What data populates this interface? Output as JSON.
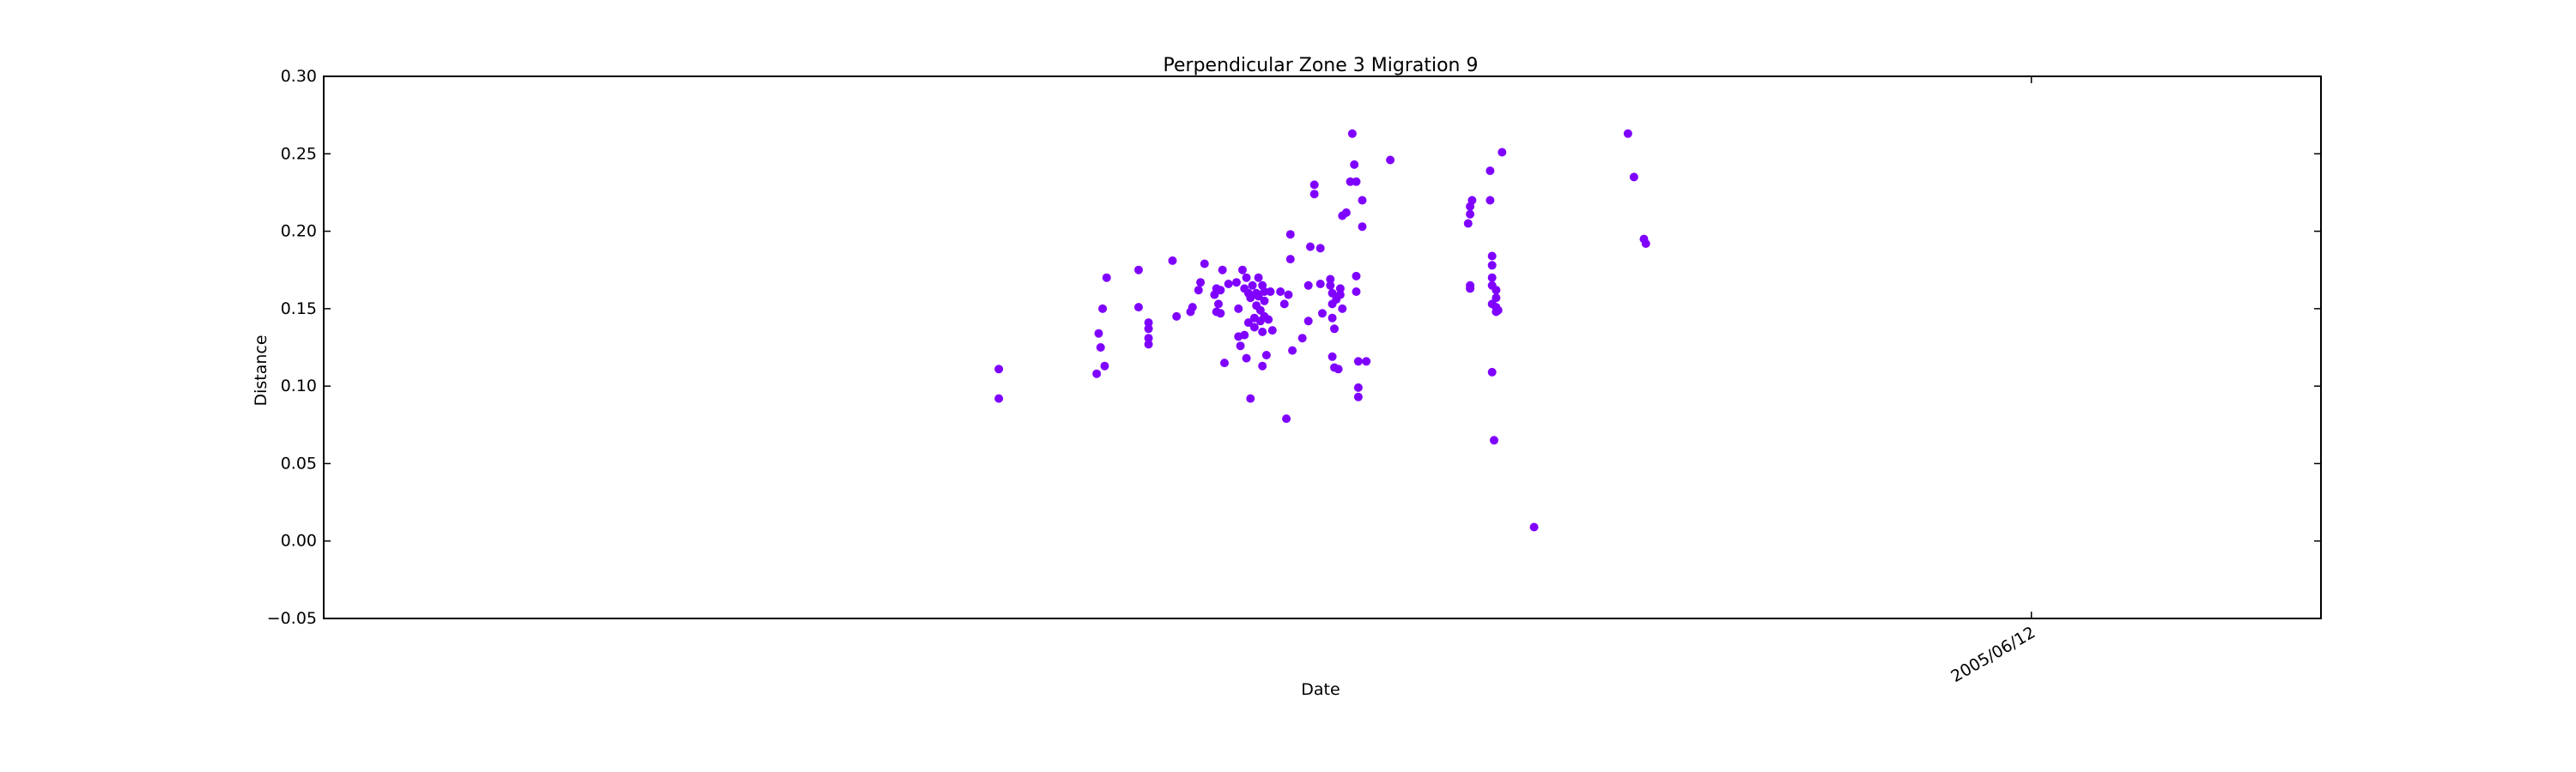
{
  "chart_data": {
    "type": "scatter",
    "title": "Perpendicular Zone 3 Migration 9",
    "xlabel": "Date",
    "ylabel": "Distance",
    "ylim": [
      -0.05,
      0.3
    ],
    "yticks": [
      "0.30",
      "0.25",
      "0.20",
      "0.15",
      "0.10",
      "0.05",
      "0.00",
      "−0.05"
    ],
    "xticks": [
      {
        "label": "2005/06/12",
        "value": 0.855
      }
    ],
    "xlim": [
      0,
      1
    ],
    "grid": false,
    "series": [
      {
        "color": "#7f00ff",
        "points": [
          [
            0.338,
            0.111
          ],
          [
            0.338,
            0.092
          ],
          [
            0.387,
            0.108
          ],
          [
            0.388,
            0.134
          ],
          [
            0.389,
            0.125
          ],
          [
            0.39,
            0.15
          ],
          [
            0.391,
            0.113
          ],
          [
            0.392,
            0.17
          ],
          [
            0.408,
            0.175
          ],
          [
            0.408,
            0.151
          ],
          [
            0.413,
            0.141
          ],
          [
            0.413,
            0.137
          ],
          [
            0.413,
            0.131
          ],
          [
            0.413,
            0.127
          ],
          [
            0.425,
            0.181
          ],
          [
            0.427,
            0.145
          ],
          [
            0.434,
            0.148
          ],
          [
            0.435,
            0.151
          ],
          [
            0.438,
            0.162
          ],
          [
            0.439,
            0.167
          ],
          [
            0.441,
            0.179
          ],
          [
            0.446,
            0.159
          ],
          [
            0.447,
            0.163
          ],
          [
            0.447,
            0.148
          ],
          [
            0.448,
            0.153
          ],
          [
            0.449,
            0.162
          ],
          [
            0.449,
            0.147
          ],
          [
            0.45,
            0.175
          ],
          [
            0.451,
            0.115
          ],
          [
            0.453,
            0.166
          ],
          [
            0.457,
            0.167
          ],
          [
            0.458,
            0.15
          ],
          [
            0.458,
            0.132
          ],
          [
            0.459,
            0.126
          ],
          [
            0.46,
            0.175
          ],
          [
            0.461,
            0.163
          ],
          [
            0.461,
            0.133
          ],
          [
            0.462,
            0.118
          ],
          [
            0.462,
            0.17
          ],
          [
            0.463,
            0.16
          ],
          [
            0.463,
            0.141
          ],
          [
            0.464,
            0.157
          ],
          [
            0.464,
            0.092
          ],
          [
            0.465,
            0.165
          ],
          [
            0.466,
            0.144
          ],
          [
            0.466,
            0.138
          ],
          [
            0.467,
            0.16
          ],
          [
            0.467,
            0.152
          ],
          [
            0.468,
            0.17
          ],
          [
            0.468,
            0.158
          ],
          [
            0.469,
            0.149
          ],
          [
            0.469,
            0.142
          ],
          [
            0.47,
            0.165
          ],
          [
            0.47,
            0.135
          ],
          [
            0.47,
            0.113
          ],
          [
            0.471,
            0.161
          ],
          [
            0.471,
            0.155
          ],
          [
            0.471,
            0.145
          ],
          [
            0.472,
            0.12
          ],
          [
            0.473,
            0.143
          ],
          [
            0.474,
            0.161
          ],
          [
            0.475,
            0.136
          ],
          [
            0.479,
            0.161
          ],
          [
            0.481,
            0.153
          ],
          [
            0.482,
            0.079
          ],
          [
            0.483,
            0.159
          ],
          [
            0.484,
            0.198
          ],
          [
            0.484,
            0.182
          ],
          [
            0.485,
            0.123
          ],
          [
            0.49,
            0.131
          ],
          [
            0.493,
            0.165
          ],
          [
            0.493,
            0.142
          ],
          [
            0.494,
            0.19
          ],
          [
            0.496,
            0.23
          ],
          [
            0.496,
            0.224
          ],
          [
            0.499,
            0.189
          ],
          [
            0.499,
            0.166
          ],
          [
            0.5,
            0.147
          ],
          [
            0.504,
            0.169
          ],
          [
            0.504,
            0.165
          ],
          [
            0.505,
            0.16
          ],
          [
            0.505,
            0.153
          ],
          [
            0.505,
            0.144
          ],
          [
            0.505,
            0.119
          ],
          [
            0.506,
            0.112
          ],
          [
            0.506,
            0.137
          ],
          [
            0.507,
            0.156
          ],
          [
            0.508,
            0.111
          ],
          [
            0.509,
            0.159
          ],
          [
            0.509,
            0.163
          ],
          [
            0.51,
            0.15
          ],
          [
            0.51,
            0.21
          ],
          [
            0.512,
            0.212
          ],
          [
            0.514,
            0.232
          ],
          [
            0.515,
            0.263
          ],
          [
            0.516,
            0.243
          ],
          [
            0.517,
            0.232
          ],
          [
            0.517,
            0.171
          ],
          [
            0.517,
            0.161
          ],
          [
            0.518,
            0.099
          ],
          [
            0.518,
            0.093
          ],
          [
            0.518,
            0.116
          ],
          [
            0.52,
            0.22
          ],
          [
            0.52,
            0.203
          ],
          [
            0.522,
            0.116
          ],
          [
            0.534,
            0.246
          ],
          [
            0.573,
            0.205
          ],
          [
            0.574,
            0.211
          ],
          [
            0.574,
            0.216
          ],
          [
            0.575,
            0.22
          ],
          [
            0.574,
            0.165
          ],
          [
            0.574,
            0.163
          ],
          [
            0.584,
            0.239
          ],
          [
            0.584,
            0.22
          ],
          [
            0.585,
            0.184
          ],
          [
            0.585,
            0.178
          ],
          [
            0.585,
            0.17
          ],
          [
            0.585,
            0.165
          ],
          [
            0.585,
            0.153
          ],
          [
            0.585,
            0.109
          ],
          [
            0.586,
            0.065
          ],
          [
            0.587,
            0.162
          ],
          [
            0.587,
            0.157
          ],
          [
            0.587,
            0.151
          ],
          [
            0.587,
            0.148
          ],
          [
            0.588,
            0.149
          ],
          [
            0.59,
            0.251
          ],
          [
            0.606,
            0.009
          ],
          [
            0.653,
            0.263
          ],
          [
            0.656,
            0.235
          ],
          [
            0.661,
            0.195
          ],
          [
            0.662,
            0.192
          ]
        ]
      }
    ]
  }
}
